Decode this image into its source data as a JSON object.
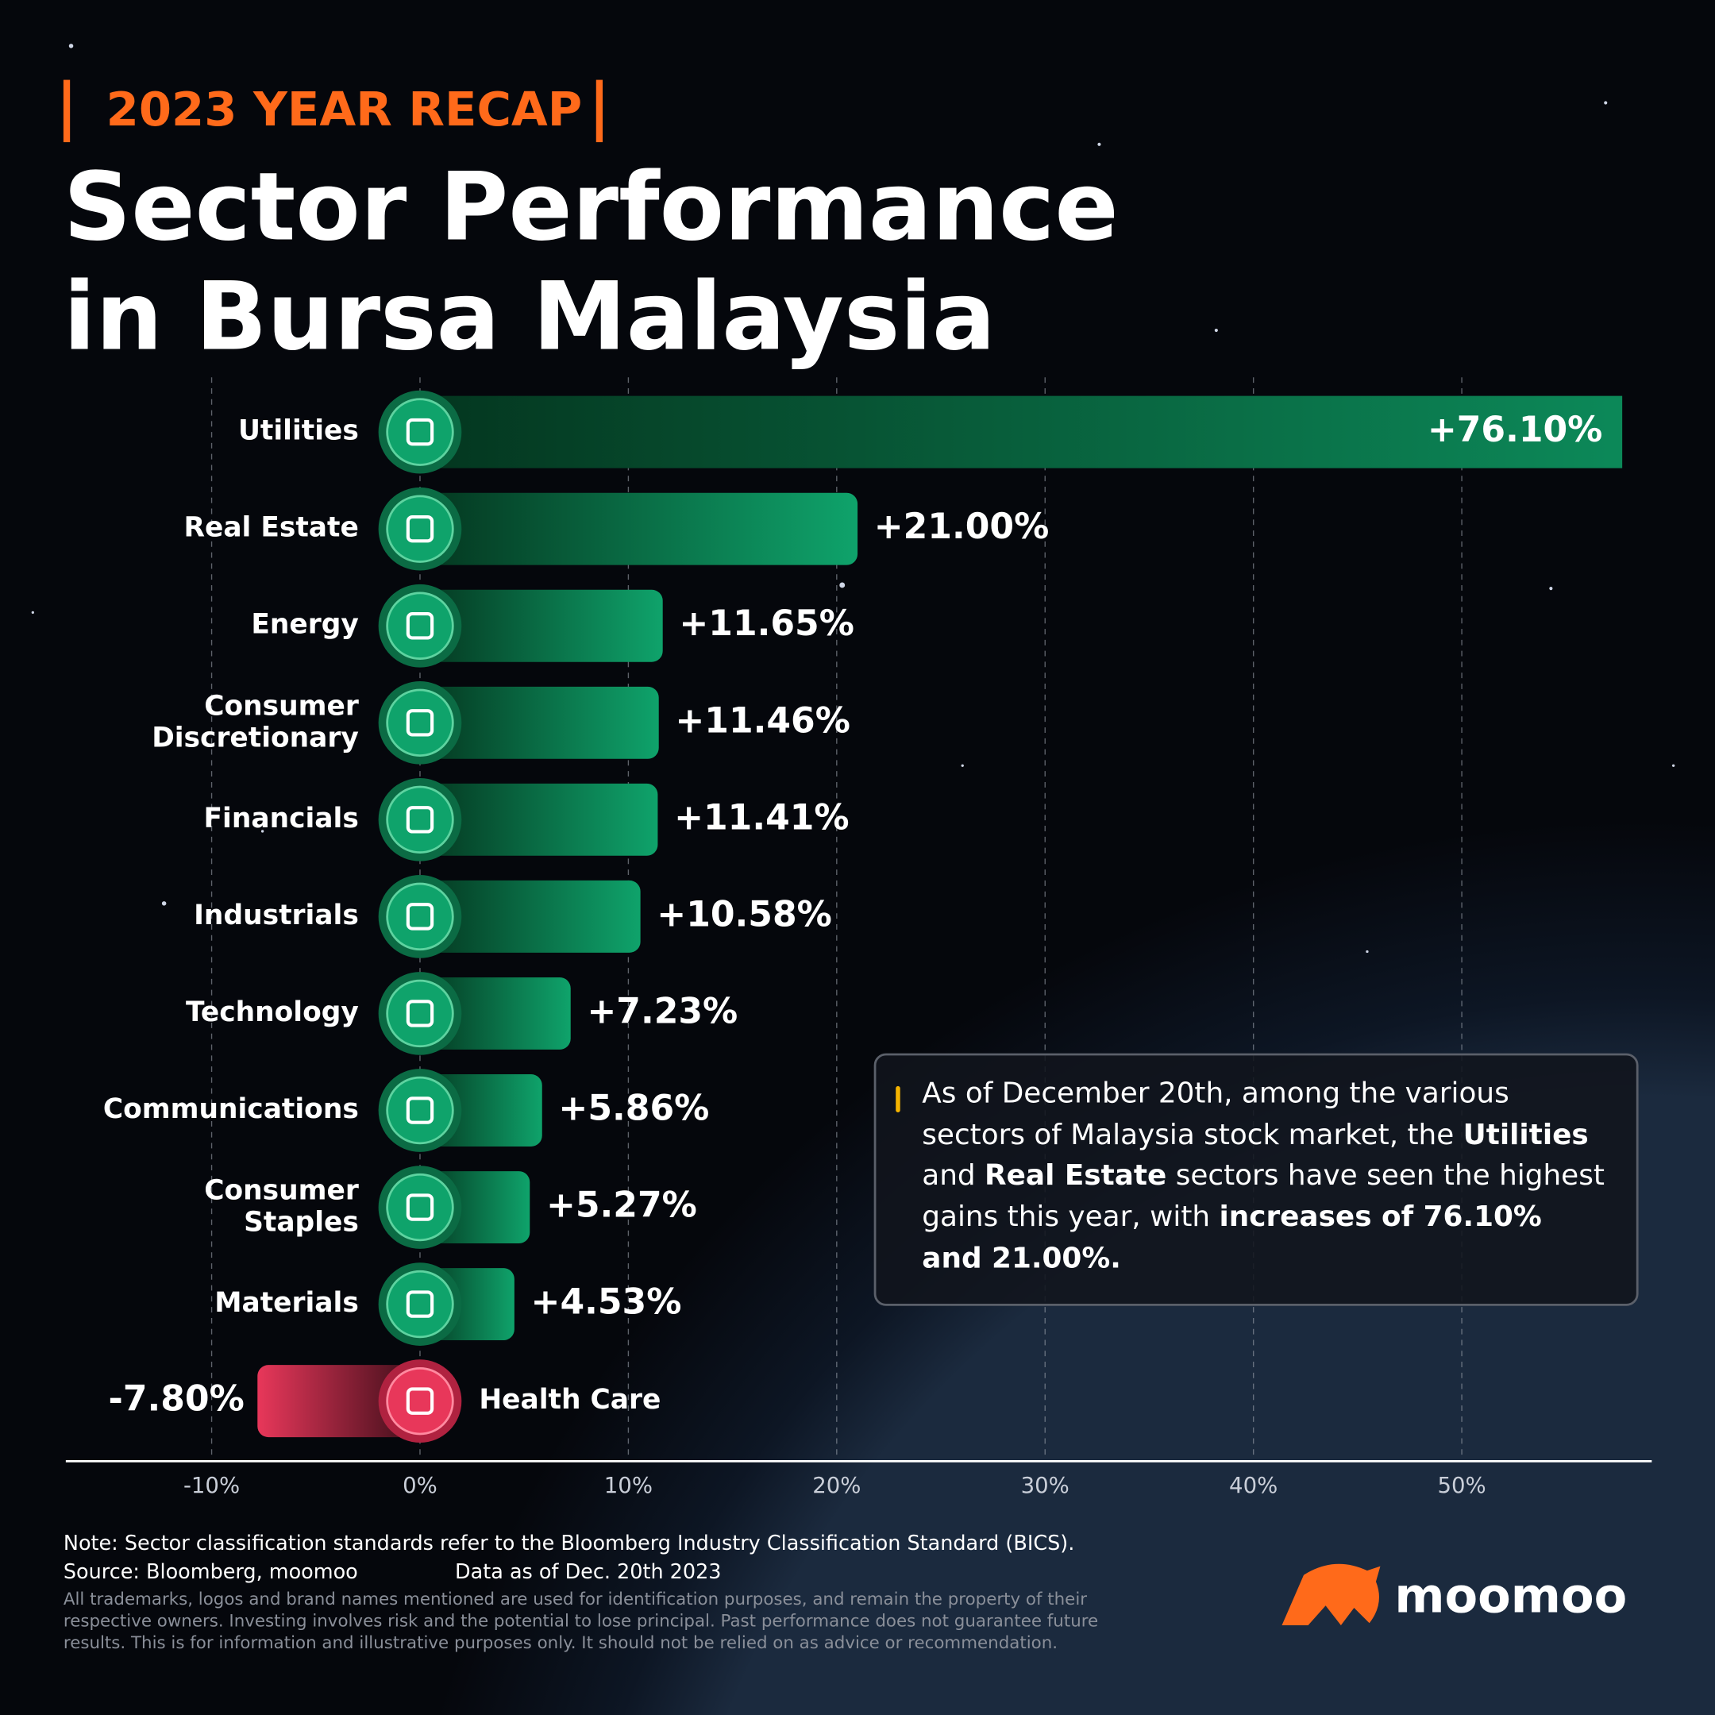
{
  "chart_data": {
    "type": "bar",
    "tag": "2023 YEAR RECAP",
    "title": "Sector Performance in Bursa Malaysia",
    "categories": [
      "Utilities",
      "Real Estate",
      "Energy",
      "Consumer Discretionary",
      "Financials",
      "Industrials",
      "Technology",
      "Communications",
      "Consumer Staples",
      "Materials",
      "Health Care"
    ],
    "values": [
      76.1,
      21.0,
      11.65,
      11.46,
      11.41,
      10.58,
      7.23,
      5.86,
      5.27,
      4.53,
      -7.8
    ],
    "value_labels": [
      "+76.10%",
      "+21.00%",
      "+11.65%",
      "+11.46%",
      "+11.41%",
      "+10.58%",
      "+7.23%",
      "+5.86%",
      "+5.27%",
      "+4.53%",
      "-7.80%"
    ],
    "colors": {
      "positive": "#0fa36b",
      "negative": "#e8375a"
    },
    "xlim": [
      -17,
      57.7
    ],
    "xticks": [
      {
        "value": -10,
        "label": "-10%"
      },
      {
        "value": 0,
        "label": "0%"
      },
      {
        "value": 10,
        "label": "10%"
      },
      {
        "value": 20,
        "label": "20%"
      },
      {
        "value": 30,
        "label": "30%"
      },
      {
        "value": 40,
        "label": "40%"
      },
      {
        "value": 50,
        "label": "50%"
      }
    ],
    "grid": true,
    "annotation": [
      "As of December 20th, among the various sectors of Malaysia stock market, the ",
      "Utilities",
      " and ",
      "Real Estate",
      " sectors have seen the highest gains this year, with ",
      "increases of 76.10% and 21.00%."
    ]
  },
  "footer": {
    "note": "Note: Sector classification standards refer to the Bloomberg Industry Classification Standard (BICS).",
    "source": "Source: Bloomberg, moomoo",
    "data_date": "Data as of Dec. 20th 2023",
    "disclaimer": "All trademarks, logos and brand names mentioned are used for identification purposes, and remain the property of their respective owners. Investing involves risk and the potential to lose principal. Past performance does not guarantee future results. This is for information and illustrative purposes only. It should not be relied on as advice or recommendation.",
    "logo": "moomoo"
  }
}
